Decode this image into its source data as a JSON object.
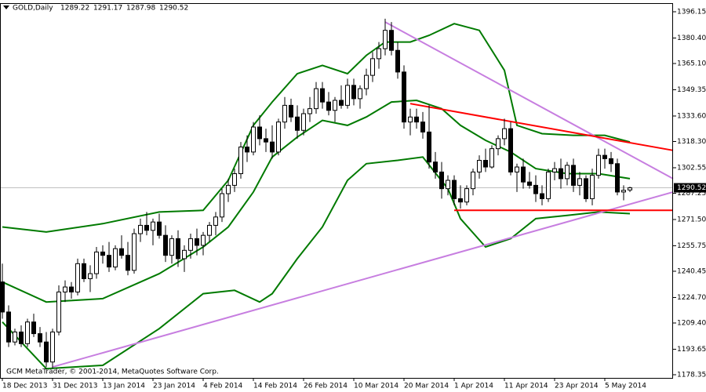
{
  "chart_data": {
    "type": "candlestick",
    "symbol": "GOLD,Daily",
    "copyright": "GCM MetaTrader, © 2001-2014, MetaQuotes Software Corp.",
    "categories": [
      "18 Dec 2013",
      null,
      null,
      null,
      null,
      null,
      null,
      null,
      "31 Dec 2013",
      null,
      null,
      null,
      null,
      null,
      null,
      null,
      "13 Jan 2014",
      null,
      null,
      null,
      null,
      null,
      null,
      null,
      "23 Jan 2014",
      null,
      null,
      null,
      null,
      null,
      null,
      null,
      "4 Feb 2014",
      null,
      null,
      null,
      null,
      null,
      null,
      null,
      "14 Feb 2014",
      null,
      null,
      null,
      null,
      null,
      null,
      null,
      "26 Feb 2014",
      null,
      null,
      null,
      null,
      null,
      null,
      null,
      "10 Mar 2014",
      null,
      null,
      null,
      null,
      null,
      null,
      null,
      "20 Mar 2014",
      null,
      null,
      null,
      null,
      null,
      null,
      null,
      "1 Apr 2014",
      null,
      null,
      null,
      null,
      null,
      null,
      null,
      "11 Apr 2014",
      null,
      null,
      null,
      null,
      null,
      null,
      null,
      "23 Apr 2014",
      null,
      null,
      null,
      null,
      null,
      null,
      null,
      "5 May 2014",
      null,
      null,
      null,
      null
    ],
    "open": [
      1234,
      1216,
      1198,
      1204,
      1197,
      1210,
      1203,
      1198,
      1186,
      1204,
      1228,
      1231,
      1228,
      1245,
      1236,
      1239,
      1252,
      1250,
      1243,
      1254,
      1250,
      1241,
      1263,
      1268,
      1265,
      1270,
      1262,
      1250,
      1260,
      1248,
      1253,
      1260,
      1256,
      1262,
      1268,
      1273,
      1287,
      1292,
      1299,
      1315,
      1312,
      1327,
      1320,
      1318,
      1312,
      1330,
      1340,
      1333,
      1325,
      1335,
      1338,
      1350,
      1342,
      1337,
      1343,
      1340,
      1352,
      1344,
      1350,
      1358,
      1368,
      1374,
      1385,
      1373,
      1360,
      1330,
      1333,
      1330,
      1324,
      1306,
      1300,
      1290,
      1295,
      1284,
      1282,
      1290,
      1300,
      1307,
      1303,
      1314,
      1320,
      1326,
      1300,
      1303,
      1294,
      1292,
      1287,
      1284,
      1300,
      1302,
      1296,
      1304,
      1292,
      1296,
      1284,
      1298,
      1310,
      1308,
      1305,
      1288,
      1289.22
    ],
    "high": [
      1245,
      1220,
      1206,
      1208,
      1212,
      1215,
      1207,
      1204,
      1206,
      1232,
      1235,
      1234,
      1248,
      1248,
      1244,
      1255,
      1256,
      1258,
      1256,
      1262,
      1258,
      1266,
      1272,
      1276,
      1272,
      1275,
      1268,
      1262,
      1265,
      1256,
      1263,
      1266,
      1264,
      1270,
      1276,
      1290,
      1296,
      1302,
      1318,
      1322,
      1330,
      1334,
      1326,
      1328,
      1332,
      1345,
      1344,
      1340,
      1338,
      1345,
      1354,
      1354,
      1348,
      1345,
      1352,
      1356,
      1356,
      1352,
      1362,
      1372,
      1378,
      1392,
      1390,
      1378,
      1364,
      1338,
      1338,
      1336,
      1340,
      1312,
      1306,
      1298,
      1298,
      1292,
      1292,
      1302,
      1310,
      1314,
      1316,
      1322,
      1332,
      1330,
      1305,
      1308,
      1300,
      1298,
      1292,
      1302,
      1306,
      1308,
      1306,
      1308,
      1300,
      1298,
      1302,
      1314,
      1314,
      1312,
      1308,
      1292,
      1291.17
    ],
    "low": [
      1212,
      1195,
      1196,
      1195,
      1195,
      1201,
      1195,
      1183,
      1182,
      1202,
      1222,
      1224,
      1226,
      1234,
      1228,
      1236,
      1245,
      1240,
      1241,
      1248,
      1238,
      1239,
      1258,
      1262,
      1256,
      1260,
      1246,
      1245,
      1243,
      1240,
      1248,
      1250,
      1250,
      1258,
      1262,
      1270,
      1282,
      1288,
      1296,
      1306,
      1310,
      1316,
      1312,
      1308,
      1310,
      1326,
      1330,
      1320,
      1322,
      1330,
      1335,
      1338,
      1334,
      1330,
      1338,
      1338,
      1340,
      1338,
      1346,
      1354,
      1362,
      1370,
      1370,
      1356,
      1326,
      1322,
      1326,
      1320,
      1302,
      1296,
      1284,
      1286,
      1280,
      1278,
      1280,
      1286,
      1296,
      1300,
      1302,
      1310,
      1316,
      1298,
      1288,
      1290,
      1290,
      1282,
      1280,
      1282,
      1295,
      1290,
      1292,
      1288,
      1286,
      1282,
      1280,
      1296,
      1302,
      1300,
      1286,
      1283,
      1287.98
    ],
    "close": [
      1216,
      1198,
      1204,
      1197,
      1210,
      1203,
      1198,
      1186,
      1204,
      1228,
      1231,
      1228,
      1245,
      1236,
      1239,
      1252,
      1250,
      1243,
      1254,
      1250,
      1241,
      1263,
      1268,
      1265,
      1270,
      1262,
      1250,
      1260,
      1248,
      1253,
      1260,
      1256,
      1262,
      1268,
      1273,
      1287,
      1292,
      1299,
      1315,
      1312,
      1327,
      1320,
      1318,
      1312,
      1330,
      1340,
      1333,
      1325,
      1335,
      1338,
      1350,
      1342,
      1337,
      1343,
      1340,
      1352,
      1344,
      1350,
      1358,
      1368,
      1374,
      1385,
      1373,
      1360,
      1330,
      1333,
      1330,
      1324,
      1306,
      1300,
      1290,
      1295,
      1284,
      1282,
      1290,
      1300,
      1307,
      1303,
      1314,
      1320,
      1326,
      1300,
      1303,
      1294,
      1292,
      1287,
      1284,
      1300,
      1302,
      1296,
      1304,
      1292,
      1296,
      1284,
      1298,
      1310,
      1308,
      1305,
      1288,
      1289,
      1290.52
    ],
    "bull_color": "#ffffff",
    "bear_color": "#000000",
    "bands": [
      {
        "color": "#007a00",
        "x": [
          0,
          7,
          16,
          25,
          32,
          36,
          40,
          43,
          47,
          51,
          55,
          58,
          61,
          65,
          68,
          72,
          76,
          80,
          82,
          86,
          91,
          96,
          100
        ],
        "values": [
          1267,
          1264,
          1269,
          1276,
          1277,
          1295,
          1328,
          1342,
          1359,
          1364,
          1359,
          1370,
          1378,
          1378,
          1382,
          1389,
          1385,
          1361,
          1328,
          1323,
          1322,
          1322,
          1318
        ]
      },
      {
        "color": "#007a00",
        "x": [
          0,
          7,
          16,
          25,
          32,
          36,
          40,
          43,
          47,
          51,
          55,
          58,
          62,
          66,
          70,
          73,
          77,
          81,
          85,
          90,
          95,
          100
        ],
        "values": [
          1234,
          1222,
          1224,
          1239,
          1255,
          1267,
          1288,
          1309,
          1321,
          1331,
          1328,
          1333,
          1342,
          1343,
          1338,
          1328,
          1319,
          1312,
          1302,
          1299,
          1299,
          1296
        ]
      },
      {
        "color": "#007a00",
        "x": [
          0,
          7,
          16,
          25,
          32,
          37,
          41,
          43,
          47,
          51,
          55,
          58,
          63,
          67,
          71,
          73,
          77,
          81,
          85,
          90,
          95,
          100
        ],
        "values": [
          1210,
          1182,
          1184,
          1206,
          1227,
          1229,
          1222,
          1227,
          1248,
          1267,
          1295,
          1305,
          1307,
          1309,
          1290,
          1272,
          1255,
          1260,
          1272,
          1274,
          1276,
          1275
        ]
      }
    ],
    "trendlines": [
      {
        "color": "#c77ee0",
        "x": [
          8,
          106.875
        ],
        "values": [
          1183,
          1288
        ]
      },
      {
        "color": "#c77ee0",
        "x": [
          61,
          106.875
        ],
        "values": [
          1390,
          1296
        ]
      },
      {
        "color": "#ff0000",
        "x": [
          65,
          106.875
        ],
        "values": [
          1341,
          1313
        ]
      },
      {
        "color": "#ff0000",
        "x": [
          72,
          106.875
        ],
        "values": [
          1277,
          1277
        ]
      }
    ],
    "xlim": [
      -0.375,
      106.875
    ],
    "ylim": [
      1176.46,
      1400.86
    ],
    "yticks": [
      {
        "value": 1396.15,
        "label": "1396.15"
      },
      {
        "value": 1380.4,
        "label": "1380.40"
      },
      {
        "value": 1365.1,
        "label": "1365.10"
      },
      {
        "value": 1349.35,
        "label": "1349.35"
      },
      {
        "value": 1333.6,
        "label": "1333.60"
      },
      {
        "value": 1318.3,
        "label": "1318.30"
      },
      {
        "value": 1302.55,
        "label": "1302.55"
      },
      {
        "value": 1287.25,
        "label": "1287.25"
      },
      {
        "value": 1271.5,
        "label": "1271.50"
      },
      {
        "value": 1255.75,
        "label": "1255.75"
      },
      {
        "value": 1240.45,
        "label": "1240.45"
      },
      {
        "value": 1224.7,
        "label": "1224.70"
      },
      {
        "value": 1209.4,
        "label": "1209.40"
      },
      {
        "value": 1193.65,
        "label": "1193.65"
      },
      {
        "value": 1178.35,
        "label": "1178.35"
      }
    ]
  }
}
